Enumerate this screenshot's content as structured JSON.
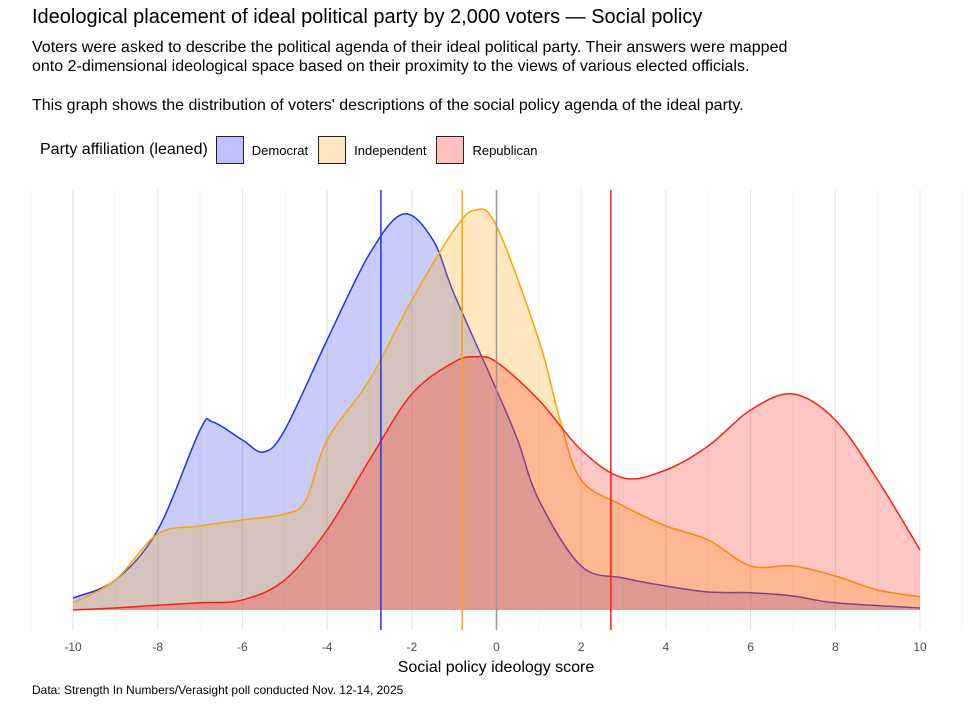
{
  "title": "Ideological placement of ideal political party by 2,000 voters — Social policy",
  "subtitle_lines": [
    "Voters were asked to describe the political agenda of their ideal political party. Their answers were mapped",
    "onto 2-dimensional ideological space based on their proximity to the views of various elected officials.",
    "This graph shows the distribution of voters' descriptions of the social policy agenda of the ideal party."
  ],
  "caption": "Data: Strength In Numbers/Verasight poll conducted Nov. 12-14, 2025",
  "chart_data": {
    "type": "area",
    "title": "Ideological placement of ideal political party by 2,000 voters — Social policy",
    "xlabel": "Social policy ideology score",
    "ylabel": "",
    "xlim": [
      -10,
      10
    ],
    "ylim": [
      0,
      1.05
    ],
    "y_units": "relative density (no y-axis shown)",
    "x_ticks": [
      "-10",
      "-8",
      "-6",
      "-4",
      "-2",
      "0",
      "2",
      "4",
      "6",
      "8",
      "10"
    ],
    "grid": "vertical",
    "legend": {
      "title": "Party affiliation (leaned)",
      "placement": "top-left"
    },
    "series": [
      {
        "name": "Democrat",
        "fill": "#c0c0ff",
        "stroke": "#2233ee",
        "mean": -2.73,
        "x": [
          -10,
          -9,
          -8,
          -7,
          -6.7,
          -6,
          -5.5,
          -5,
          -4,
          -3,
          -2.2,
          -1.5,
          -1,
          0,
          0.5,
          1,
          2,
          3,
          4,
          5,
          6,
          7,
          8,
          10
        ],
        "y": [
          0.03,
          0.075,
          0.2,
          0.45,
          0.47,
          0.425,
          0.395,
          0.45,
          0.675,
          0.89,
          0.99,
          0.925,
          0.79,
          0.55,
          0.425,
          0.275,
          0.11,
          0.08,
          0.06,
          0.045,
          0.043,
          0.035,
          0.018,
          0.005
        ]
      },
      {
        "name": "Independent",
        "fill": "#ffe4c0",
        "stroke": "#ffa500",
        "mean": -0.81,
        "x": [
          -10,
          -9,
          -8,
          -7,
          -6,
          -5,
          -4.5,
          -4,
          -3,
          -2,
          -1,
          -0.5,
          0,
          1,
          1.5,
          2,
          3,
          4,
          5,
          6,
          7,
          8,
          9,
          10
        ],
        "y": [
          0.018,
          0.075,
          0.19,
          0.21,
          0.225,
          0.24,
          0.275,
          0.425,
          0.575,
          0.775,
          0.95,
          1.0,
          0.96,
          0.675,
          0.475,
          0.325,
          0.26,
          0.21,
          0.175,
          0.11,
          0.11,
          0.085,
          0.05,
          0.033
        ]
      },
      {
        "name": "Republican",
        "fill": "#ffc0c0",
        "stroke": "#ff2010",
        "mean": 2.7,
        "x": [
          -10,
          -9,
          -8,
          -7,
          -6,
          -5,
          -4,
          -3,
          -2,
          -1,
          -0.5,
          0,
          1,
          2,
          3,
          4,
          5,
          6,
          7,
          8,
          9,
          10
        ],
        "y": [
          0,
          0.005,
          0.012,
          0.018,
          0.025,
          0.075,
          0.2,
          0.375,
          0.54,
          0.62,
          0.633,
          0.62,
          0.525,
          0.4,
          0.33,
          0.35,
          0.41,
          0.5,
          0.54,
          0.475,
          0.325,
          0.15
        ]
      }
    ],
    "reference_line": {
      "x": 0,
      "color": "#999999"
    }
  }
}
